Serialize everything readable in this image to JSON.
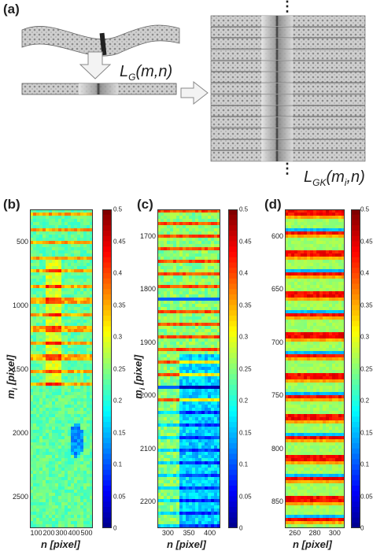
{
  "panel_a": {
    "label": "(a)",
    "formula_g": {
      "main": "L",
      "sub": "G",
      "args": "(m,n)"
    },
    "formula_gk": {
      "main": "L",
      "sub": "GK",
      "args": "(m",
      "args_sub": "i",
      "args_end": ",n)"
    },
    "dots": "⋮"
  },
  "panel_b": {
    "label": "(b)",
    "yticks": [
      "500",
      "1000",
      "1500",
      "2000",
      "2500"
    ],
    "xticks": [
      "100",
      "200",
      "300",
      "400",
      "500"
    ],
    "ylabel": "m",
    "ylabel_sub": "i",
    "ylabel_unit": " [pixel]",
    "xlabel": "n [pixel]",
    "colorbar_ticks": [
      "0.5",
      "0.45",
      "0.4",
      "0.35",
      "0.3",
      "0.25",
      "0.2",
      "0.15",
      "0.1",
      "0.05",
      "0"
    ]
  },
  "panel_c": {
    "label": "(c)",
    "yticks": [
      "1700",
      "1800",
      "1900",
      "2000",
      "2100",
      "2200"
    ],
    "xticks": [
      "300",
      "350",
      "400"
    ],
    "ylabel": "m",
    "ylabel_sub": "i",
    "ylabel_unit": " [pixel]",
    "xlabel": "n [pixel]",
    "colorbar_ticks": [
      "0.5",
      "0.45",
      "0.4",
      "0.35",
      "0.3",
      "0.25",
      "0.2",
      "0.15",
      "0.1",
      "0.05",
      "0"
    ]
  },
  "panel_d": {
    "label": "(d)",
    "yticks": [
      "600",
      "650",
      "700",
      "750",
      "800",
      "850"
    ],
    "xticks": [
      "260",
      "280",
      "300"
    ],
    "xlabel": "n [pixel]",
    "colorbar_ticks": [
      "0.5",
      "0.45",
      "0.4",
      "0.35",
      "0.3",
      "0.25",
      "0.2",
      "0.15",
      "0.1",
      "0.05",
      "0"
    ]
  },
  "colors": {
    "jet_low": "#00008f",
    "jet_mid": "#7fffa0",
    "jet_high": "#800000",
    "texture": "#c9c9c9"
  }
}
